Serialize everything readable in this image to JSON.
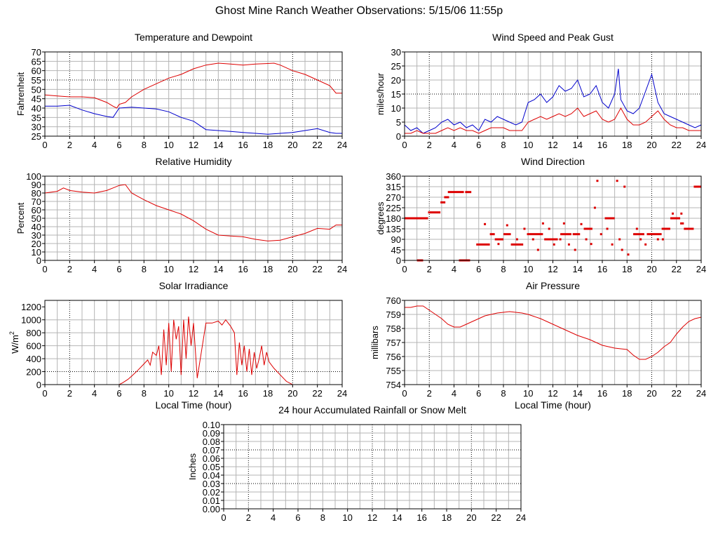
{
  "page_title": "Ghost Mine Ranch Weather Observations: 5/15/06 11:55p",
  "colors": {
    "red": "#dd0000",
    "blue": "#0000cc",
    "grid": "#b4b4b4",
    "axis": "#000000",
    "background": "#ffffff"
  },
  "chart_data": [
    {
      "id": "temp",
      "type": "line",
      "title": "Temperature and Dewpoint",
      "xlabel": "",
      "ylabel": "Fahrenheit",
      "xlim": [
        0,
        24
      ],
      "ylim": [
        25,
        70
      ],
      "xticks": [
        0,
        2,
        4,
        6,
        8,
        10,
        12,
        14,
        16,
        18,
        20,
        22,
        24
      ],
      "yticks": [
        25,
        30,
        35,
        40,
        45,
        50,
        55,
        60,
        65,
        70
      ],
      "grid": true,
      "series": [
        {
          "color": "red",
          "x": [
            0,
            1,
            2,
            3,
            4,
            5,
            5.5,
            5.8,
            6,
            6.5,
            7,
            8,
            9,
            10,
            11,
            12,
            13,
            14,
            15,
            16,
            17,
            18,
            18.5,
            19,
            20,
            21,
            22,
            23,
            23.5,
            24
          ],
          "y": [
            47,
            46.5,
            46,
            46,
            45.5,
            43,
            41,
            40,
            42,
            43,
            46,
            50,
            53,
            56,
            58,
            61,
            63,
            64,
            63.5,
            63,
            63.5,
            63.8,
            64,
            63,
            60,
            58,
            55,
            52,
            48,
            48
          ]
        },
        {
          "color": "blue",
          "x": [
            0,
            1,
            2,
            3,
            4,
            5,
            5.5,
            6,
            7,
            8,
            9,
            10,
            11,
            12,
            13,
            14,
            15,
            16,
            17,
            18,
            19,
            20,
            21,
            22,
            23,
            23.5,
            24
          ],
          "y": [
            41,
            41,
            41.5,
            39,
            37,
            35.5,
            35,
            40,
            40.5,
            40,
            39.5,
            38,
            35,
            33,
            28.5,
            28,
            27.5,
            27,
            26.5,
            26,
            26.5,
            27,
            28,
            29,
            27,
            26.5,
            26.5
          ]
        }
      ]
    },
    {
      "id": "wind",
      "type": "line",
      "title": "Wind Speed and Peak Gust",
      "xlabel": "",
      "ylabel": "miles/hour",
      "xlim": [
        0,
        24
      ],
      "ylim": [
        0,
        30
      ],
      "xticks": [
        0,
        2,
        4,
        6,
        8,
        10,
        12,
        14,
        16,
        18,
        20,
        22,
        24
      ],
      "yticks": [
        0,
        5,
        10,
        15,
        20,
        25,
        30
      ],
      "grid": true,
      "series": [
        {
          "color": "blue",
          "x": [
            0,
            0.5,
            1,
            1.5,
            2,
            2.5,
            3,
            3.5,
            4,
            4.5,
            5,
            5.5,
            6,
            6.5,
            7,
            7.5,
            8,
            8.5,
            9,
            9.5,
            10,
            10.5,
            11,
            11.5,
            12,
            12.5,
            13,
            13.5,
            14,
            14.5,
            15,
            15.5,
            16,
            16.5,
            17,
            17.3,
            17.5,
            18,
            18.5,
            19,
            19.5,
            20,
            20.5,
            21,
            21.5,
            22,
            22.5,
            23,
            23.5,
            24
          ],
          "y": [
            4,
            2,
            3,
            1,
            2,
            3,
            5,
            6,
            4,
            5,
            3,
            4,
            2,
            6,
            5,
            7,
            6,
            5,
            4,
            5,
            12,
            13,
            15,
            12,
            14,
            18,
            16,
            17,
            20,
            14,
            15,
            18,
            12,
            10,
            15,
            24,
            13,
            9,
            8,
            10,
            16,
            22,
            12,
            8,
            7,
            6,
            5,
            4,
            3,
            4
          ]
        },
        {
          "color": "red",
          "x": [
            0,
            0.5,
            1,
            1.5,
            2,
            2.5,
            3,
            3.5,
            4,
            4.5,
            5,
            5.5,
            6,
            6.5,
            7,
            7.5,
            8,
            8.5,
            9,
            9.5,
            10,
            10.5,
            11,
            11.5,
            12,
            12.5,
            13,
            13.5,
            14,
            14.5,
            15,
            15.5,
            16,
            16.5,
            17,
            17.5,
            18,
            18.5,
            19,
            19.5,
            20,
            20.5,
            21,
            21.5,
            22,
            22.5,
            23,
            23.5,
            24
          ],
          "y": [
            1,
            1,
            2,
            1,
            1,
            1,
            2,
            3,
            2,
            3,
            2,
            2,
            1,
            2,
            3,
            3,
            3,
            2,
            2,
            2,
            5,
            6,
            7,
            6,
            7,
            8,
            7,
            8,
            10,
            7,
            8,
            9,
            6,
            5,
            6,
            10,
            6,
            4,
            4,
            5,
            7,
            9,
            6,
            4,
            3,
            3,
            2,
            2,
            2
          ]
        }
      ]
    },
    {
      "id": "humidity",
      "type": "line",
      "title": "Relative Humidity",
      "xlabel": "",
      "ylabel": "Percent",
      "xlim": [
        0,
        24
      ],
      "ylim": [
        0,
        100
      ],
      "xticks": [
        0,
        2,
        4,
        6,
        8,
        10,
        12,
        14,
        16,
        18,
        20,
        22,
        24
      ],
      "yticks": [
        0,
        10,
        20,
        30,
        40,
        50,
        60,
        70,
        80,
        90,
        100
      ],
      "grid": true,
      "series": [
        {
          "color": "red",
          "x": [
            0,
            1,
            1.5,
            2,
            3,
            4,
            5,
            5.5,
            6,
            6.5,
            7,
            7.5,
            8,
            9,
            10,
            11,
            12,
            13,
            14,
            15,
            16,
            17,
            18,
            19,
            20,
            21,
            22,
            23,
            23.5,
            24
          ],
          "y": [
            80,
            82,
            86,
            83,
            81,
            80,
            83,
            86,
            89,
            90,
            80,
            76,
            72,
            65,
            60,
            55,
            47,
            37,
            30,
            29,
            28,
            25,
            23,
            24,
            28,
            32,
            38,
            37,
            42,
            42
          ]
        }
      ]
    },
    {
      "id": "direction",
      "type": "scatter",
      "title": "Wind Direction",
      "xlabel": "",
      "ylabel": "degrees",
      "xlim": [
        0,
        24
      ],
      "ylim": [
        0,
        360
      ],
      "xticks": [
        0,
        2,
        4,
        6,
        8,
        10,
        12,
        14,
        16,
        18,
        20,
        22,
        24
      ],
      "yticks": [
        0,
        45,
        90,
        135,
        180,
        225,
        270,
        315,
        360
      ],
      "grid": true,
      "series": [
        {
          "color": "red",
          "segments": [
            [
              0,
              1.9,
              180
            ],
            [
              1,
              1.5,
              0
            ],
            [
              1.9,
              2.9,
              205
            ],
            [
              2.9,
              3.3,
              248
            ],
            [
              3.2,
              3.6,
              270
            ],
            [
              3.5,
              4.8,
              292
            ],
            [
              4.9,
              5.4,
              292
            ],
            [
              4.4,
              5.3,
              0
            ],
            [
              5.8,
              6.9,
              68
            ],
            [
              6.9,
              7.3,
              112
            ],
            [
              7.3,
              8.0,
              90
            ],
            [
              8.0,
              8.6,
              112
            ],
            [
              8.6,
              9.6,
              68
            ],
            [
              9.9,
              11.2,
              112
            ],
            [
              11.3,
              12.4,
              90
            ],
            [
              12.6,
              13.5,
              112
            ],
            [
              13.6,
              14.2,
              112
            ],
            [
              14.5,
              15.2,
              135
            ],
            [
              16.2,
              17.0,
              180
            ],
            [
              18.5,
              19.4,
              112
            ],
            [
              19.6,
              20.8,
              112
            ],
            [
              20.8,
              21.5,
              135
            ],
            [
              21.5,
              22.3,
              180
            ],
            [
              22.3,
              22.6,
              158
            ],
            [
              22.6,
              23.4,
              135
            ],
            [
              23.4,
              24,
              315
            ]
          ],
          "points": [
            [
              6.5,
              155
            ],
            [
              7.6,
              70
            ],
            [
              8.3,
              150
            ],
            [
              9.1,
              90
            ],
            [
              9.7,
              135
            ],
            [
              10.4,
              90
            ],
            [
              10.8,
              45
            ],
            [
              11.2,
              158
            ],
            [
              11.7,
              135
            ],
            [
              12.1,
              68
            ],
            [
              12.6,
              90
            ],
            [
              12.9,
              158
            ],
            [
              13.3,
              68
            ],
            [
              13.8,
              45
            ],
            [
              14.3,
              155
            ],
            [
              14.7,
              90
            ],
            [
              15.1,
              70
            ],
            [
              15.4,
              225
            ],
            [
              15.6,
              340
            ],
            [
              15.9,
              112
            ],
            [
              16.4,
              135
            ],
            [
              16.8,
              68
            ],
            [
              17.2,
              340
            ],
            [
              17.4,
              90
            ],
            [
              17.8,
              315
            ],
            [
              17.6,
              45
            ],
            [
              18.1,
              25
            ],
            [
              18.8,
              135
            ],
            [
              19.1,
              90
            ],
            [
              19.5,
              68
            ],
            [
              20.5,
              90
            ],
            [
              20.9,
              90
            ],
            [
              21.7,
              200
            ],
            [
              22.4,
              200
            ]
          ]
        }
      ]
    },
    {
      "id": "solar",
      "type": "line",
      "title": "Solar Irradiance",
      "xlabel": "Local Time (hour)",
      "ylabel": "W/m",
      "ylabel_superscript": "2",
      "xlim": [
        0,
        24
      ],
      "ylim": [
        0,
        1300
      ],
      "xticks": [
        0,
        2,
        4,
        6,
        8,
        10,
        12,
        14,
        16,
        18,
        20,
        22,
        24
      ],
      "yticks": [
        0,
        200,
        400,
        600,
        800,
        1000,
        1200
      ],
      "grid": true,
      "series": [
        {
          "color": "red",
          "x": [
            0,
            6,
            6.3,
            6.7,
            7,
            7.5,
            8,
            8.3,
            8.5,
            8.7,
            9,
            9.2,
            9.4,
            9.6,
            9.8,
            10,
            10.2,
            10.4,
            10.6,
            10.8,
            11,
            11.2,
            11.4,
            11.6,
            11.8,
            12,
            12.3,
            13,
            13.5,
            14,
            14.3,
            14.6,
            15,
            15.3,
            15.5,
            15.7,
            15.9,
            16.1,
            16.3,
            16.5,
            16.7,
            16.9,
            17.1,
            17.3,
            17.5,
            17.7,
            17.9,
            18.1,
            18.5,
            19,
            19.5,
            19.8,
            20,
            24
          ],
          "y": [
            0,
            0,
            30,
            80,
            130,
            220,
            320,
            380,
            300,
            500,
            450,
            600,
            150,
            850,
            300,
            950,
            200,
            1000,
            700,
            900,
            150,
            1000,
            400,
            1050,
            600,
            950,
            100,
            950,
            950,
            980,
            920,
            1000,
            900,
            800,
            150,
            650,
            300,
            600,
            200,
            550,
            150,
            500,
            250,
            400,
            600,
            300,
            500,
            350,
            250,
            150,
            50,
            20,
            0,
            0
          ]
        }
      ]
    },
    {
      "id": "pressure",
      "type": "line",
      "title": "Air Pressure",
      "xlabel": "Local Time (hour)",
      "ylabel": "millibars",
      "xlim": [
        0,
        24
      ],
      "ylim": [
        754,
        760
      ],
      "xticks": [
        0,
        2,
        4,
        6,
        8,
        10,
        12,
        14,
        16,
        18,
        20,
        22,
        24
      ],
      "yticks": [
        754,
        755,
        756,
        757,
        758,
        759,
        760
      ],
      "grid": true,
      "series": [
        {
          "color": "red",
          "x": [
            0,
            0.5,
            1,
            1.5,
            2,
            2.5,
            3,
            3.5,
            4,
            4.5,
            5,
            5.5,
            6,
            6.5,
            7,
            7.5,
            8,
            8.5,
            9,
            9.5,
            10,
            11,
            12,
            13,
            14,
            15,
            16,
            17,
            18,
            18.5,
            19,
            19.5,
            20,
            20.5,
            21,
            21.5,
            22,
            22.5,
            23,
            23.5,
            24
          ],
          "y": [
            759.5,
            759.5,
            759.6,
            759.6,
            759.3,
            759.0,
            758.7,
            758.3,
            758.1,
            758.1,
            758.3,
            758.5,
            758.7,
            758.9,
            759.0,
            759.1,
            759.15,
            759.2,
            759.15,
            759.1,
            759.0,
            758.7,
            758.3,
            757.9,
            757.5,
            757.2,
            756.8,
            756.6,
            756.5,
            756.1,
            755.8,
            755.8,
            756.0,
            756.3,
            756.7,
            757.0,
            757.6,
            758.1,
            758.5,
            758.7,
            758.8
          ]
        }
      ]
    },
    {
      "id": "rain",
      "type": "line",
      "title": "24 hour Accumulated Rainfall or Snow Melt",
      "xlabel": "",
      "ylabel": "Inches",
      "xlim": [
        0,
        24
      ],
      "ylim": [
        0,
        0.1
      ],
      "xticks": [
        0,
        2,
        4,
        6,
        8,
        10,
        12,
        14,
        16,
        18,
        20,
        22,
        24
      ],
      "yticks": [
        0,
        0.01,
        0.02,
        0.03,
        0.04,
        0.05,
        0.06,
        0.07,
        0.08,
        0.09,
        0.1
      ],
      "ytick_decimals": 2,
      "grid": true,
      "series": [
        {
          "color": "red",
          "x": [
            0,
            24
          ],
          "y": [
            0,
            0
          ]
        }
      ]
    }
  ]
}
